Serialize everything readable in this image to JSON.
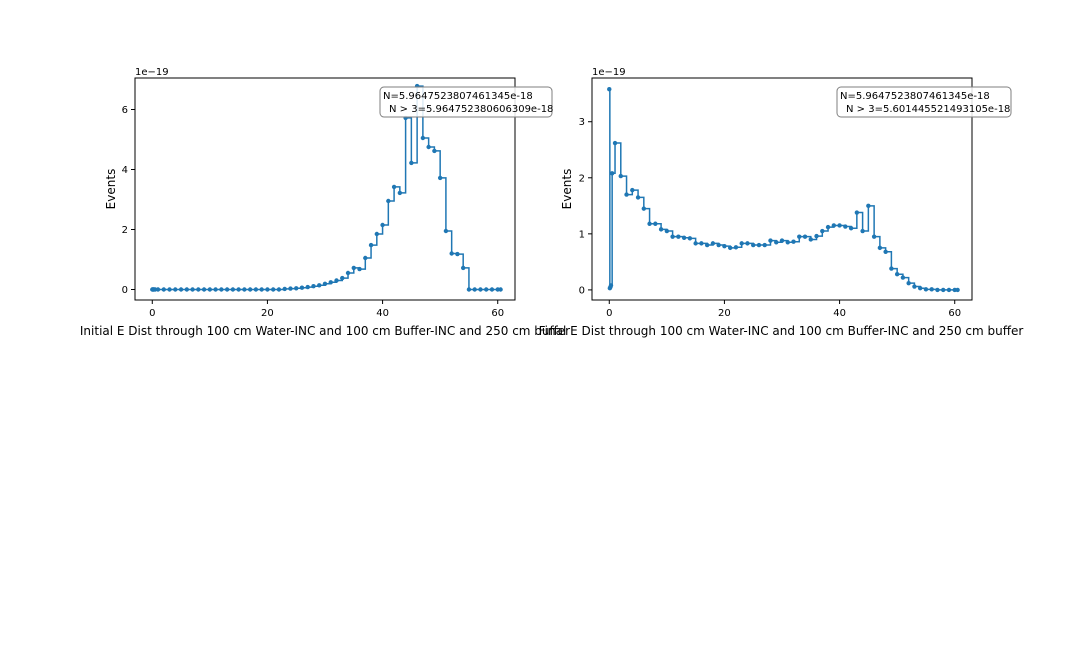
{
  "colors": {
    "series": "#1f77b4",
    "axes": "#000000",
    "annotation_border": "#7f7f7f",
    "background": "#ffffff"
  },
  "chart_data": [
    {
      "type": "line",
      "drawstyle": "steps-post",
      "marker": "dot",
      "title": "",
      "xlabel": "Initial E Dist through 100 cm Water-INC and 100 cm Buffer-INC and 250 cm buffer",
      "ylabel": "Events",
      "yscale_label": "1e−19",
      "xlim": [
        -3,
        63
      ],
      "ylim": [
        -0.35,
        7.05
      ],
      "xticks": [
        0,
        20,
        40,
        60
      ],
      "yticks": [
        0,
        2,
        4,
        6
      ],
      "grid": false,
      "legend": "none",
      "annotation": {
        "lines": [
          "N=5.964752380746134 5e-18",
          "N > 3=5.964752380606309e-18"
        ],
        "text_line1": "N=5.9647523807461345e-18",
        "text_line2": "N > 3=5.964752380606309e-18",
        "placement": "top-right"
      },
      "series": [
        {
          "x": [
            0,
            0.1,
            0.2,
            0.3,
            0.5,
            1,
            2,
            3,
            4,
            5,
            6,
            7,
            8,
            9,
            10,
            11,
            12,
            13,
            14,
            15,
            16,
            17,
            18,
            19,
            20,
            21,
            22,
            23,
            24,
            25,
            26,
            27,
            28,
            29,
            30,
            31,
            32,
            33,
            34,
            35,
            36,
            37,
            38,
            39,
            40,
            41,
            42,
            43,
            44,
            45,
            46,
            47,
            48,
            49,
            50,
            51,
            52,
            53,
            54,
            55,
            56,
            57,
            58,
            59,
            60,
            60.5
          ],
          "y": [
            0,
            0,
            0,
            0,
            0,
            0,
            0,
            0,
            0,
            0,
            0,
            0,
            0,
            0,
            0,
            0,
            0,
            0,
            0,
            0,
            0,
            0,
            0,
            0,
            0,
            0,
            0,
            0.02,
            0.03,
            0.04,
            0.06,
            0.08,
            0.11,
            0.14,
            0.19,
            0.24,
            0.3,
            0.38,
            0.55,
            0.72,
            0.68,
            1.05,
            1.48,
            1.85,
            2.15,
            2.95,
            3.42,
            3.22,
            5.72,
            4.22,
            6.78,
            5.05,
            4.75,
            4.62,
            3.72,
            1.95,
            1.2,
            1.18,
            0.72,
            0,
            0,
            0,
            0,
            0,
            0,
            0
          ]
        }
      ]
    },
    {
      "type": "line",
      "drawstyle": "steps-post",
      "marker": "dot",
      "title": "",
      "xlabel": "Final E Dist through 100 cm Water-INC and 100 cm Buffer-INC and 250 cm buffer",
      "ylabel": "Events",
      "yscale_label": "1e−19",
      "xlim": [
        -3,
        63
      ],
      "ylim": [
        -0.18,
        3.78
      ],
      "xticks": [
        0,
        20,
        40,
        60
      ],
      "yticks": [
        0,
        1,
        2,
        3
      ],
      "grid": false,
      "legend": "none",
      "annotation": {
        "text_line1": "N=5.9647523807461345e-18",
        "text_line2": "N > 3=5.601445521493105e-18",
        "placement": "top-right"
      },
      "series": [
        {
          "x": [
            0,
            0.1,
            0.2,
            0.3,
            0.5,
            1,
            2,
            3,
            4,
            5,
            6,
            7,
            8,
            9,
            10,
            11,
            12,
            13,
            14,
            15,
            16,
            17,
            18,
            19,
            20,
            21,
            22,
            23,
            24,
            25,
            26,
            27,
            28,
            29,
            30,
            31,
            32,
            33,
            34,
            35,
            36,
            37,
            38,
            39,
            40,
            41,
            42,
            43,
            44,
            45,
            46,
            47,
            48,
            49,
            50,
            51,
            52,
            53,
            54,
            55,
            56,
            57,
            58,
            59,
            60,
            60.5
          ],
          "y": [
            3.58,
            0.03,
            0.05,
            0.08,
            2.08,
            2.62,
            2.03,
            1.7,
            1.78,
            1.65,
            1.45,
            1.18,
            1.18,
            1.08,
            1.05,
            0.95,
            0.95,
            0.93,
            0.92,
            0.83,
            0.83,
            0.8,
            0.83,
            0.8,
            0.78,
            0.75,
            0.76,
            0.83,
            0.83,
            0.8,
            0.8,
            0.8,
            0.88,
            0.85,
            0.88,
            0.85,
            0.86,
            0.95,
            0.95,
            0.9,
            0.96,
            1.05,
            1.12,
            1.15,
            1.15,
            1.13,
            1.1,
            1.38,
            1.05,
            1.5,
            0.95,
            0.75,
            0.68,
            0.38,
            0.28,
            0.22,
            0.12,
            0.06,
            0.03,
            0.01,
            0.01,
            0,
            0,
            0,
            0,
            0
          ]
        }
      ]
    }
  ]
}
